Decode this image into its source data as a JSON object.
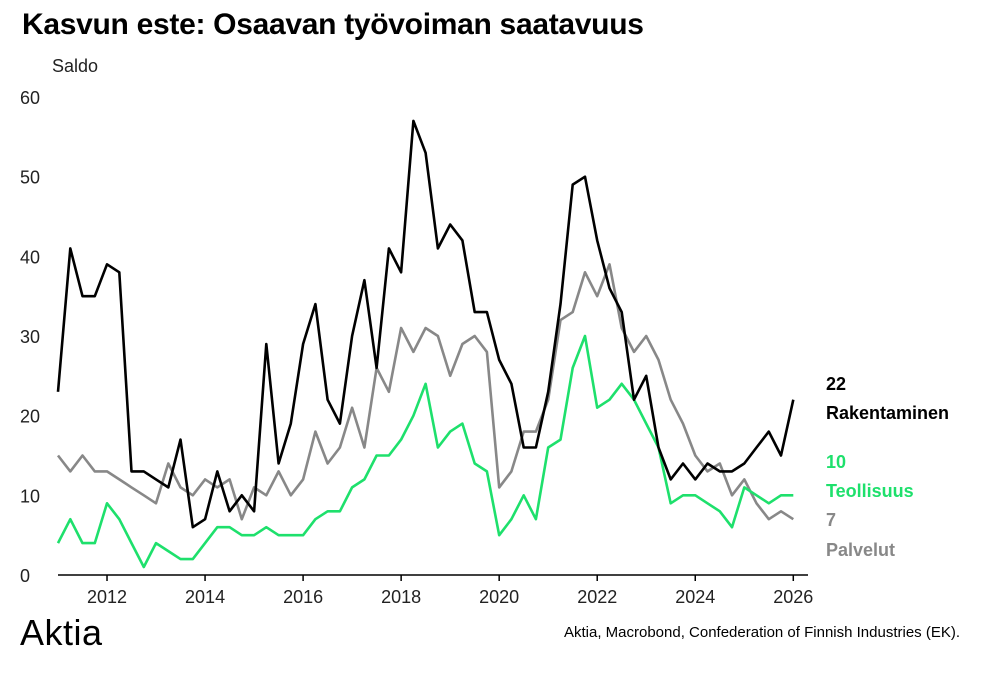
{
  "title": "Kasvun este: Osaavan työvoiman saatavuus",
  "brand": "Aktia",
  "source": "Aktia, Macrobond, Confederation of Finnish Industries (EK).",
  "chart_data": {
    "type": "line",
    "ylabel": "Saldo",
    "ylim": [
      0,
      60
    ],
    "yticks": [
      "0",
      "10",
      "20",
      "30",
      "40",
      "50",
      "60"
    ],
    "xlim": [
      2011.0,
      2026.3
    ],
    "xticks": [
      "2012",
      "2014",
      "2016",
      "2018",
      "2020",
      "2022",
      "2024",
      "2026"
    ],
    "grid": false,
    "legend": "right end labels",
    "series": [
      {
        "name": "Rakentaminen",
        "last_value_label": "22",
        "color": "#000000",
        "x": [
          2011.0,
          2011.25,
          2011.5,
          2011.75,
          2012.0,
          2012.25,
          2012.5,
          2012.75,
          2013.0,
          2013.25,
          2013.5,
          2013.75,
          2014.0,
          2014.25,
          2014.5,
          2014.75,
          2015.0,
          2015.25,
          2015.5,
          2015.75,
          2016.0,
          2016.25,
          2016.5,
          2016.75,
          2017.0,
          2017.25,
          2017.5,
          2017.75,
          2018.0,
          2018.25,
          2018.5,
          2018.75,
          2019.0,
          2019.25,
          2019.5,
          2019.75,
          2020.0,
          2020.25,
          2020.5,
          2020.75,
          2021.0,
          2021.25,
          2021.5,
          2021.75,
          2022.0,
          2022.25,
          2022.5,
          2022.75,
          2023.0,
          2023.25,
          2023.5,
          2023.75,
          2024.0,
          2024.25,
          2024.5,
          2024.75,
          2025.0,
          2025.25,
          2025.5,
          2025.75,
          2026.0
        ],
        "values": [
          23,
          41,
          35,
          35,
          39,
          38,
          13,
          13,
          12,
          11,
          17,
          6,
          7,
          13,
          8,
          10,
          8,
          29,
          14,
          19,
          29,
          34,
          22,
          19,
          30,
          37,
          26,
          41,
          38,
          57,
          53,
          41,
          44,
          42,
          33,
          33,
          27,
          24,
          16,
          16,
          23,
          34,
          49,
          50,
          42,
          36,
          33,
          22,
          25,
          16,
          12,
          14,
          12,
          14,
          13,
          13,
          14,
          16,
          18,
          15,
          22
        ]
      },
      {
        "name": "Teollisuus",
        "last_value_label": "10",
        "color": "#1ee06c",
        "x": [
          2011.0,
          2011.25,
          2011.5,
          2011.75,
          2012.0,
          2012.25,
          2012.5,
          2012.75,
          2013.0,
          2013.25,
          2013.5,
          2013.75,
          2014.0,
          2014.25,
          2014.5,
          2014.75,
          2015.0,
          2015.25,
          2015.5,
          2015.75,
          2016.0,
          2016.25,
          2016.5,
          2016.75,
          2017.0,
          2017.25,
          2017.5,
          2017.75,
          2018.0,
          2018.25,
          2018.5,
          2018.75,
          2019.0,
          2019.25,
          2019.5,
          2019.75,
          2020.0,
          2020.25,
          2020.5,
          2020.75,
          2021.0,
          2021.25,
          2021.5,
          2021.75,
          2022.0,
          2022.25,
          2022.5,
          2022.75,
          2023.0,
          2023.25,
          2023.5,
          2023.75,
          2024.0,
          2024.25,
          2024.5,
          2024.75,
          2025.0,
          2025.25,
          2025.5,
          2025.75,
          2026.0
        ],
        "values": [
          4,
          7,
          4,
          4,
          9,
          7,
          4,
          1,
          4,
          3,
          2,
          2,
          4,
          6,
          6,
          5,
          5,
          6,
          5,
          5,
          5,
          7,
          8,
          8,
          11,
          12,
          15,
          15,
          17,
          20,
          24,
          16,
          18,
          19,
          14,
          13,
          5,
          7,
          10,
          7,
          16,
          17,
          26,
          30,
          21,
          22,
          24,
          22,
          19,
          16,
          9,
          10,
          10,
          9,
          8,
          6,
          11,
          10,
          9,
          10,
          10
        ]
      },
      {
        "name": "Palvelut",
        "last_value_label": "7",
        "color": "#888888",
        "x": [
          2011.0,
          2011.25,
          2011.5,
          2011.75,
          2012.0,
          2012.25,
          2012.5,
          2012.75,
          2013.0,
          2013.25,
          2013.5,
          2013.75,
          2014.0,
          2014.25,
          2014.5,
          2014.75,
          2015.0,
          2015.25,
          2015.5,
          2015.75,
          2016.0,
          2016.25,
          2016.5,
          2016.75,
          2017.0,
          2017.25,
          2017.5,
          2017.75,
          2018.0,
          2018.25,
          2018.5,
          2018.75,
          2019.0,
          2019.25,
          2019.5,
          2019.75,
          2020.0,
          2020.25,
          2020.5,
          2020.75,
          2021.0,
          2021.25,
          2021.5,
          2021.75,
          2022.0,
          2022.25,
          2022.5,
          2022.75,
          2023.0,
          2023.25,
          2023.5,
          2023.75,
          2024.0,
          2024.25,
          2024.5,
          2024.75,
          2025.0,
          2025.25,
          2025.5,
          2025.75,
          2026.0
        ],
        "values": [
          15,
          13,
          15,
          13,
          13,
          12,
          11,
          10,
          9,
          14,
          11,
          10,
          12,
          11,
          12,
          7,
          11,
          10,
          13,
          10,
          12,
          18,
          14,
          16,
          21,
          16,
          26,
          23,
          31,
          28,
          31,
          30,
          25,
          29,
          30,
          28,
          11,
          13,
          18,
          18,
          22,
          32,
          33,
          38,
          35,
          39,
          31,
          28,
          30,
          27,
          22,
          19,
          15,
          13,
          14,
          10,
          12,
          9,
          7,
          8,
          7
        ]
      }
    ]
  }
}
